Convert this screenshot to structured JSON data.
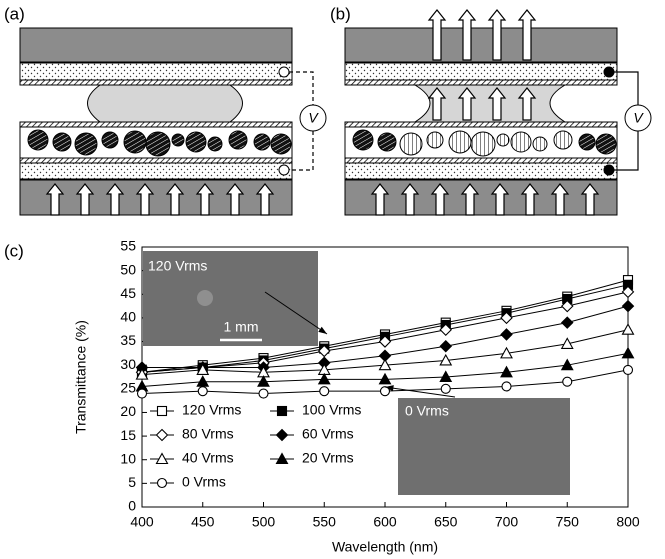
{
  "panel_labels": [
    "(a)",
    "(b)",
    "(c)"
  ],
  "voltage_symbol": "V",
  "chart_data": {
    "type": "line",
    "x_label": "Wavelength (nm)",
    "y_label": "Transmittance (%)",
    "x": [
      400,
      450,
      500,
      550,
      600,
      650,
      700,
      750,
      800
    ],
    "xlim": [
      400,
      800
    ],
    "xticks": [
      400,
      450,
      500,
      550,
      600,
      650,
      700,
      750,
      800
    ],
    "ylim": [
      0,
      55
    ],
    "yticks": [
      0,
      5,
      10,
      15,
      20,
      25,
      30,
      35,
      40,
      45,
      50,
      55
    ],
    "series": [
      {
        "name": "120 Vrms",
        "color": "#000000",
        "marker": "square-open",
        "values": [
          28.5,
          30,
          31.5,
          34,
          36.5,
          39,
          41.5,
          44.5,
          48
        ]
      },
      {
        "name": "100 Vrms",
        "color": "#000000",
        "marker": "square-filled",
        "values": [
          28.5,
          29.5,
          31,
          33.5,
          36,
          38.5,
          41,
          44,
          47
        ]
      },
      {
        "name": "80 Vrms",
        "color": "#000000",
        "marker": "diamond-open",
        "values": [
          28.5,
          29.5,
          30.5,
          33,
          35,
          37.5,
          40,
          42.5,
          45.5
        ]
      },
      {
        "name": "60 Vrms",
        "color": "#000000",
        "marker": "diamond-filled",
        "values": [
          29.5,
          29.5,
          29.5,
          30.5,
          32,
          34,
          36.5,
          39,
          42.5
        ]
      },
      {
        "name": "40 Vrms",
        "color": "#000000",
        "marker": "triangle-open",
        "values": [
          28,
          29,
          28.5,
          29,
          30,
          31,
          32.5,
          34.5,
          37.5
        ]
      },
      {
        "name": "20 Vrms",
        "color": "#000000",
        "marker": "triangle-filled",
        "values": [
          25.5,
          26.5,
          26.5,
          27,
          27,
          27.5,
          28.5,
          30,
          32.5
        ]
      },
      {
        "name": "0 Vrms",
        "color": "#000000",
        "marker": "circle-open",
        "values": [
          24,
          24.5,
          24,
          24.5,
          24.5,
          25,
          25.5,
          26.5,
          29
        ]
      }
    ],
    "annotations": [
      "120 Vrms",
      "1 mm",
      "0 Vrms"
    ]
  }
}
